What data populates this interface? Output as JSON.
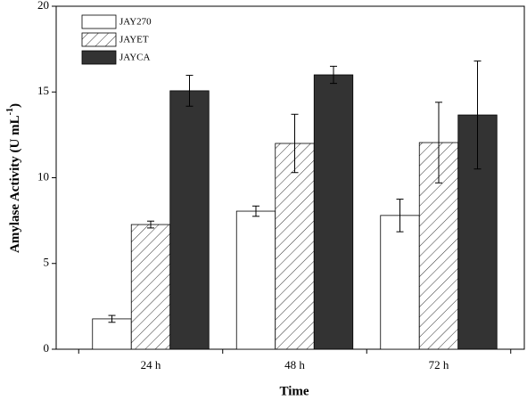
{
  "chart_data": {
    "type": "bar",
    "x_label": "Time",
    "y_label": {
      "text": "Amylase Activity (U mL",
      "sup": "-1",
      "end": ")"
    },
    "categories": [
      "24 h",
      "48 h",
      "72 h"
    ],
    "series": [
      {
        "name": "JAY270",
        "color": "#ffffff",
        "pattern": "solid",
        "values": [
          1.77,
          8.05,
          7.8
        ],
        "errors": [
          0.2,
          0.3,
          0.95
        ]
      },
      {
        "name": "JAYET",
        "color": "#ffffff",
        "pattern": "hatch",
        "values": [
          7.27,
          12.0,
          12.05
        ],
        "errors": [
          0.2,
          1.7,
          2.35
        ]
      },
      {
        "name": "JAYCA",
        "color": "#333333",
        "pattern": "solid",
        "values": [
          15.07,
          16.0,
          13.66
        ],
        "errors": [
          0.9,
          0.5,
          3.15
        ]
      }
    ],
    "ylim": [
      0,
      20
    ],
    "yticks": [
      0,
      5,
      10,
      15,
      20
    ],
    "grid": false,
    "legend": "upper left"
  }
}
